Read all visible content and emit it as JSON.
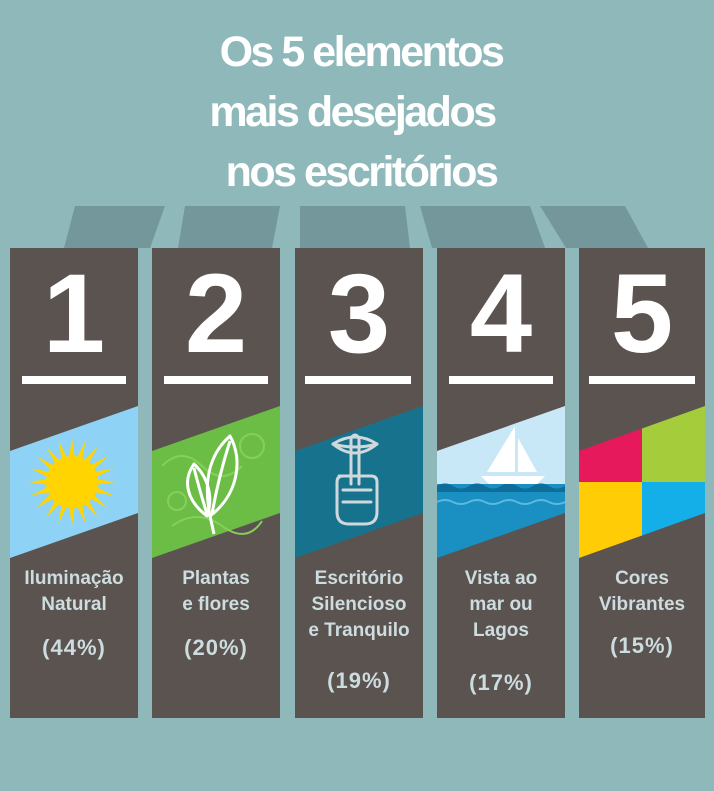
{
  "title": {
    "line1": "Os 5 elementos",
    "line2": "mais desejados",
    "line3": "nos escritórios"
  },
  "colors": {
    "background": "#8fb8bb",
    "card": "#5b5350",
    "text_light": "#ccdcdf",
    "connector": "#5f7c81"
  },
  "chart_data": {
    "type": "bar",
    "title": "Os 5 elementos mais desejados nos escritórios",
    "categories": [
      "Iluminação Natural",
      "Plantas e flores",
      "Escritório Silencioso e Tranquilo",
      "Vista ao mar ou Lagos",
      "Cores Vibrantes"
    ],
    "values": [
      44,
      20,
      19,
      17,
      15
    ],
    "unit": "%",
    "items": [
      {
        "rank": "1",
        "label_lines": [
          "Iluminação",
          "Natural"
        ],
        "value": 44,
        "value_text": "(44%)",
        "icon": "sun-icon"
      },
      {
        "rank": "2",
        "label_lines": [
          "Plantas",
          "e flores"
        ],
        "value": 20,
        "value_text": "(20%)",
        "icon": "leaf-icon"
      },
      {
        "rank": "3",
        "label_lines": [
          "Escritório",
          "Silencioso",
          "e Tranquilo"
        ],
        "value": 19,
        "value_text": "(19%)",
        "icon": "quiet-finger-icon"
      },
      {
        "rank": "4",
        "label_lines": [
          "Vista ao",
          "mar ou",
          "Lagos"
        ],
        "value": 17,
        "value_text": "(17%)",
        "icon": "sailboat-icon"
      },
      {
        "rank": "5",
        "label_lines": [
          "Cores",
          "Vibrantes"
        ],
        "value": 15,
        "value_text": "(15%)",
        "icon": "color-squares-icon"
      }
    ]
  }
}
